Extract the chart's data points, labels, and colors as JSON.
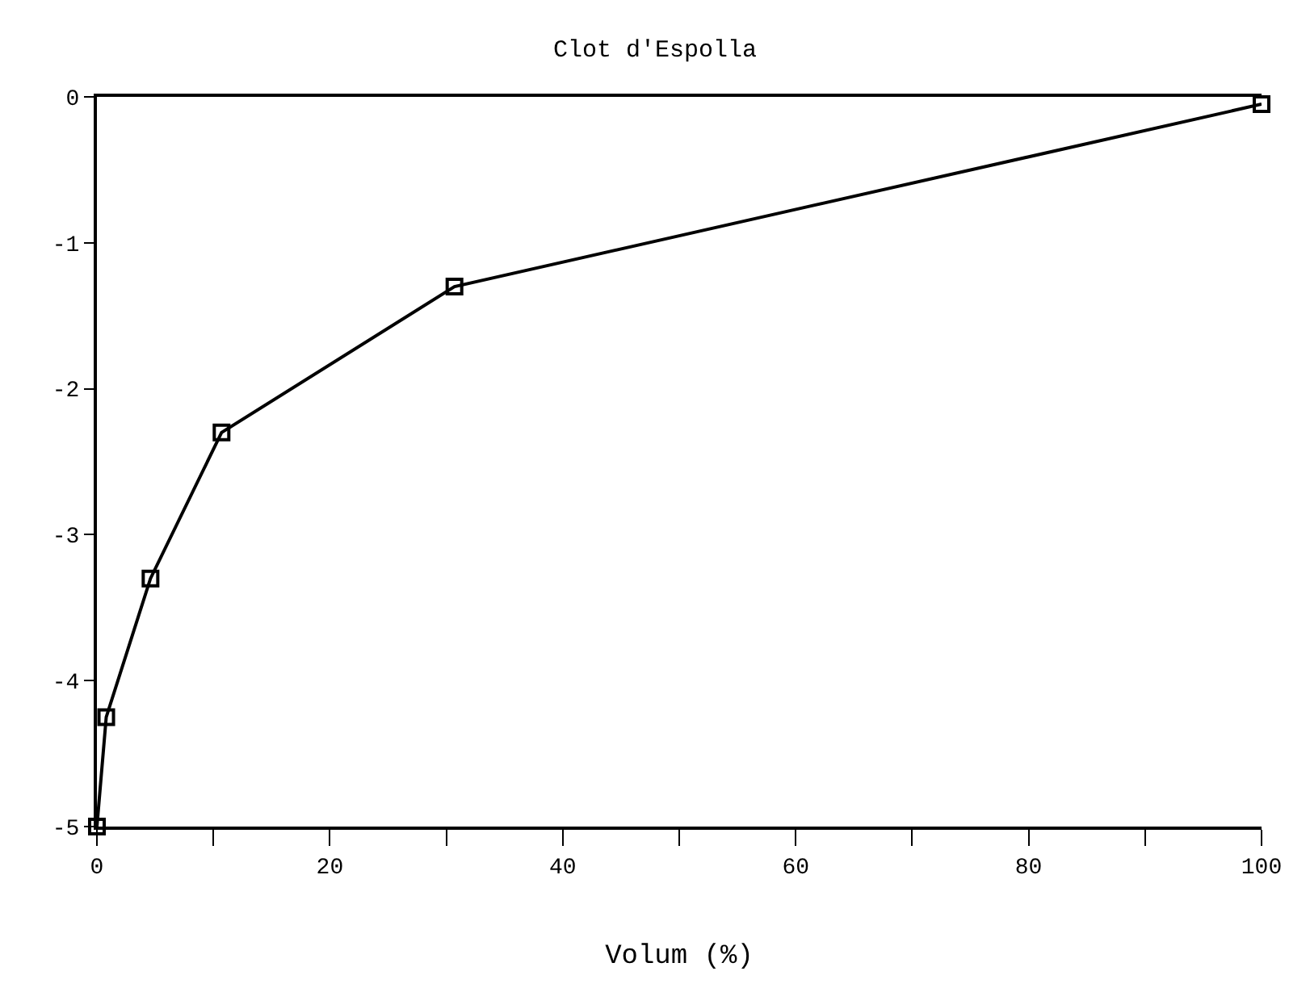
{
  "chart_data": {
    "type": "line",
    "title": "Clot d'Espolla",
    "xlabel": "Volum (%)",
    "x": [
      0,
      0.8,
      4.6,
      10.7,
      30.7,
      100
    ],
    "series": [
      {
        "color": "#000000",
        "values": [
          -5.0,
          -4.25,
          -3.3,
          -2.3,
          -1.3,
          -0.05
        ]
      }
    ],
    "xlim": [
      0,
      100
    ],
    "xticks": [
      0,
      {
        "value": 10,
        "label": null
      },
      20,
      {
        "value": 30,
        "label": null
      },
      40,
      {
        "value": 50,
        "label": null
      },
      60,
      {
        "value": 70,
        "label": null
      },
      80,
      {
        "value": 90,
        "label": null
      },
      100
    ],
    "ylim": [
      -5,
      0
    ],
    "yticks": [
      -5,
      -4,
      -3,
      -2,
      -1,
      0
    ],
    "marker": "square",
    "line_style": "solid",
    "legend": false
  }
}
